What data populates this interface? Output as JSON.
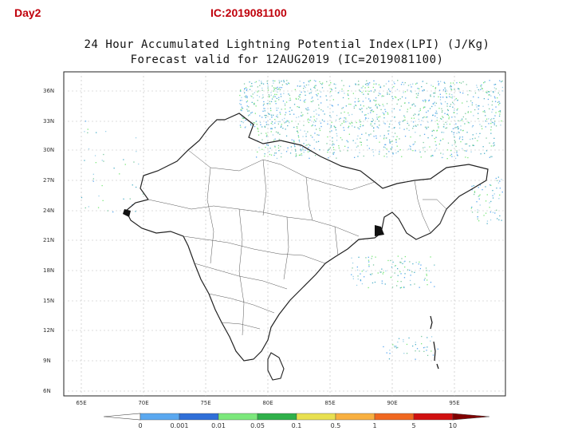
{
  "header": {
    "day_label": "Day2",
    "ic_label": "IC:2019081100"
  },
  "map": {
    "title_line1": "24 Hour Accumulated Lightning Potential Index(LPI) (J/Kg)",
    "title_line2": "Forecast valid for 12AUG2019 (IC=2019081100)",
    "lat_labels": [
      "36N",
      "33N",
      "30N",
      "27N",
      "24N",
      "21N",
      "18N",
      "15N",
      "12N",
      "9N",
      "6N"
    ],
    "lon_labels": [
      "65E",
      "70E",
      "75E",
      "80E",
      "85E",
      "90E",
      "95E"
    ],
    "grid": true
  },
  "colorbar": {
    "ticks": [
      "0",
      "0.001",
      "0.01",
      "0.05",
      "0.1",
      "0.5",
      "1",
      "5",
      "10"
    ],
    "colors": [
      "#ffffff",
      "#5aa8f0",
      "#2f6fd8",
      "#7ce87c",
      "#2fb04a",
      "#e8e050",
      "#f8b040",
      "#f06820",
      "#d01010",
      "#800000"
    ]
  }
}
